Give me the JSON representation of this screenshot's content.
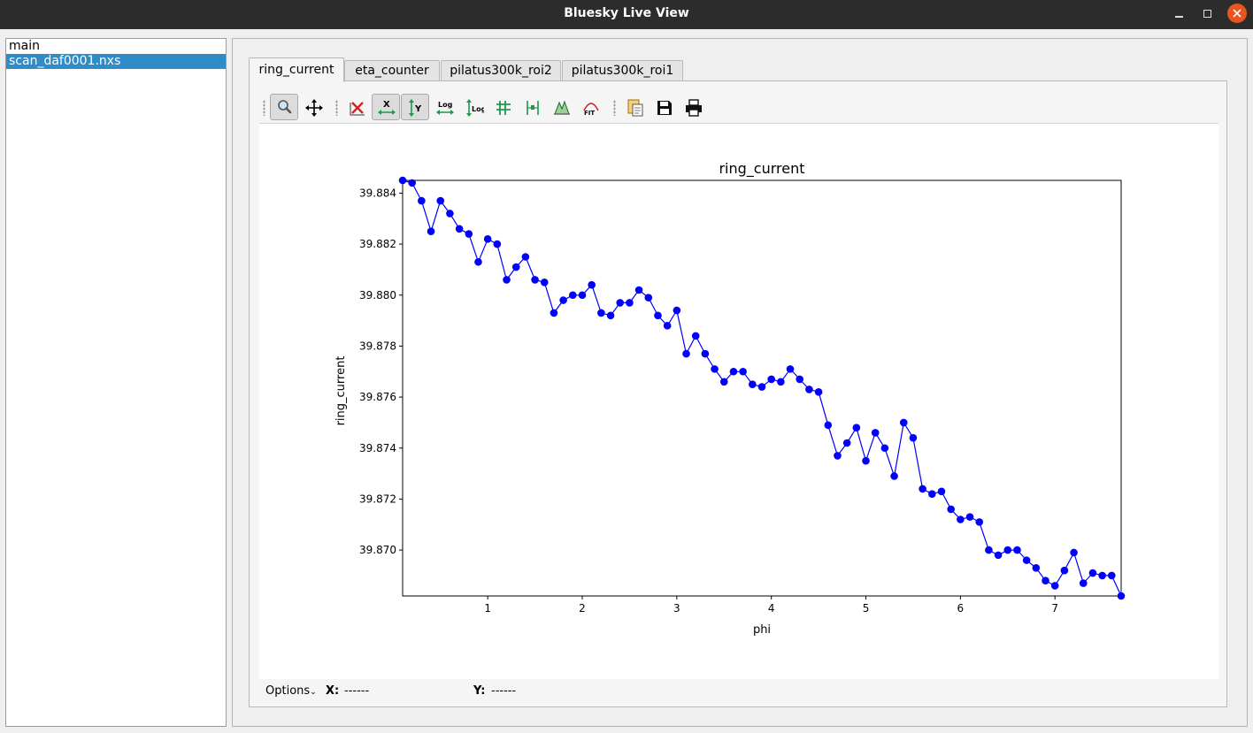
{
  "window": {
    "title": "Bluesky Live View"
  },
  "tree": {
    "items": [
      {
        "label": "main",
        "selected": false
      },
      {
        "label": "scan_daf0001.nxs",
        "selected": true
      }
    ]
  },
  "tabs": [
    {
      "label": "ring_current",
      "active": true
    },
    {
      "label": "eta_counter",
      "active": false
    },
    {
      "label": "pilatus300k_roi2",
      "active": false
    },
    {
      "label": "pilatus300k_roi1",
      "active": false
    }
  ],
  "toolbar": {
    "tools": [
      {
        "icon": "zoom-icon",
        "pressed": true
      },
      {
        "icon": "pan-icon",
        "pressed": false
      },
      {
        "icon": "reset-zoom-icon",
        "pressed": false
      },
      {
        "icon": "x-autoscale-icon",
        "pressed": true
      },
      {
        "icon": "y-autoscale-icon",
        "pressed": true
      },
      {
        "icon": "x-log-icon",
        "pressed": false,
        "text": "Log"
      },
      {
        "icon": "y-log-icon",
        "pressed": false,
        "text": "Log"
      },
      {
        "icon": "grid-icon",
        "pressed": false
      },
      {
        "icon": "curve-style-icon",
        "pressed": false
      },
      {
        "icon": "colormap-icon",
        "pressed": false
      },
      {
        "icon": "fit-icon",
        "pressed": false,
        "text": "FIT"
      },
      {
        "icon": "copy-icon",
        "pressed": false
      },
      {
        "icon": "save-icon",
        "pressed": false
      },
      {
        "icon": "print-icon",
        "pressed": false
      }
    ]
  },
  "status": {
    "options_label": "Options",
    "x_label": "X:",
    "x_value": "------",
    "y_label": "Y:",
    "y_value": "------"
  },
  "colors": {
    "series": "#0000ff",
    "selection": "#308cc6",
    "titlebar": "#2c2c2c",
    "close_button": "#e95420"
  },
  "chart_data": {
    "type": "line",
    "title": "ring_current",
    "xlabel": "phi",
    "ylabel": "ring_current",
    "xlim": [
      0.1,
      7.7
    ],
    "ylim": [
      39.8682,
      39.8845
    ],
    "xticks": [
      1,
      2,
      3,
      4,
      5,
      6,
      7
    ],
    "yticks": [
      39.87,
      39.872,
      39.874,
      39.876,
      39.878,
      39.88,
      39.882,
      39.884
    ],
    "ytick_labels": [
      "39.870",
      "39.872",
      "39.874",
      "39.876",
      "39.878",
      "39.880",
      "39.882",
      "39.884"
    ],
    "marker": "circle",
    "grid": false,
    "series": [
      {
        "x": [
          0.1,
          0.2,
          0.3,
          0.4,
          0.5,
          0.6,
          0.7,
          0.8,
          0.9,
          1.0,
          1.1,
          1.2,
          1.3,
          1.4,
          1.5,
          1.6,
          1.7,
          1.8,
          1.9,
          2.0,
          2.1,
          2.2,
          2.3,
          2.4,
          2.5,
          2.6,
          2.7,
          2.8,
          2.9,
          3.0,
          3.1,
          3.2,
          3.3,
          3.4,
          3.5,
          3.6,
          3.7,
          3.8,
          3.9,
          4.0,
          4.1,
          4.2,
          4.3,
          4.4,
          4.5,
          4.6,
          4.7,
          4.8,
          4.9,
          5.0,
          5.1,
          5.2,
          5.3,
          5.4,
          5.5,
          5.6,
          5.7,
          5.8,
          5.9,
          6.0,
          6.1,
          6.2,
          6.3,
          6.4,
          6.5,
          6.6,
          6.7,
          6.8,
          6.9,
          7.0,
          7.1,
          7.2,
          7.3,
          7.4,
          7.5,
          7.6,
          7.7
        ],
        "y": [
          39.8845,
          39.8844,
          39.8837,
          39.8825,
          39.8837,
          39.8832,
          39.8826,
          39.8824,
          39.8813,
          39.8822,
          39.882,
          39.8806,
          39.8811,
          39.8815,
          39.8806,
          39.8805,
          39.8793,
          39.8798,
          39.88,
          39.88,
          39.8804,
          39.8793,
          39.8792,
          39.8797,
          39.8797,
          39.8802,
          39.8799,
          39.8792,
          39.8788,
          39.8794,
          39.8777,
          39.8784,
          39.8777,
          39.8771,
          39.8766,
          39.877,
          39.877,
          39.8765,
          39.8764,
          39.8767,
          39.8766,
          39.8771,
          39.8767,
          39.8763,
          39.8762,
          39.8749,
          39.8737,
          39.8742,
          39.8748,
          39.8735,
          39.8746,
          39.874,
          39.8729,
          39.875,
          39.8744,
          39.8724,
          39.8722,
          39.8723,
          39.8716,
          39.8712,
          39.8713,
          39.8711,
          39.87,
          39.8698,
          39.87,
          39.87,
          39.8696,
          39.8693,
          39.8688,
          39.8686,
          39.8692,
          39.8699,
          39.8687,
          39.8691,
          39.869,
          39.869,
          39.8682
        ]
      }
    ]
  }
}
